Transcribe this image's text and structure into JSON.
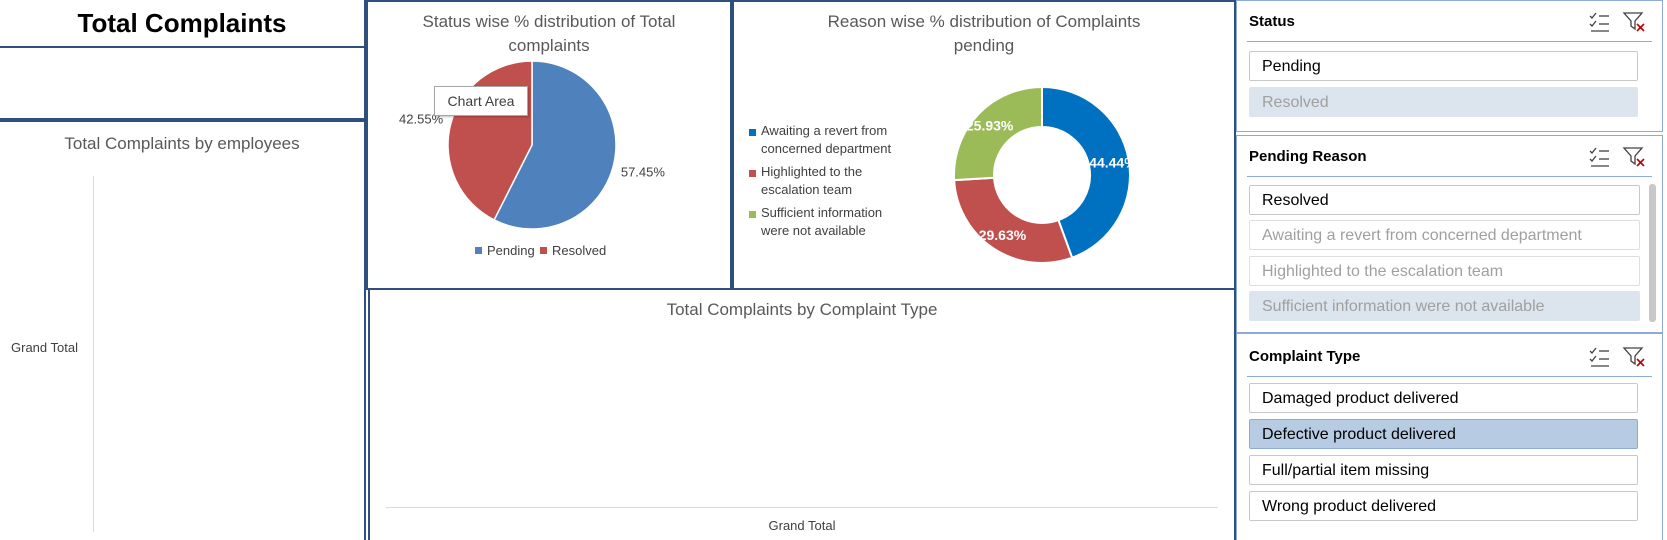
{
  "dashboard": {
    "title": "Total Complaints",
    "employees_chart": {
      "title": "Total Complaints by employees",
      "row_label": "Grand Total"
    },
    "type_chart": {
      "title": "Total Complaints by Complaint Type",
      "x_label": "Grand Total"
    },
    "tooltip": "Chart Area"
  },
  "chart_data": [
    {
      "type": "pie",
      "title": "Status wise % distribution of Total complaints",
      "title_lines": [
        "Status wise % distribution of Total",
        "complaints"
      ],
      "categories": [
        "Pending",
        "Resolved"
      ],
      "values": [
        57.45,
        42.55
      ],
      "labels": [
        "57.45%",
        "42.55%"
      ],
      "colors": [
        "#4f81bd",
        "#c0504d"
      ],
      "legend": "bottom"
    },
    {
      "type": "pie",
      "subtype": "donut",
      "title": "Reason wise % distribution of Complaints pending",
      "title_lines": [
        "Reason wise % distribution of Complaints",
        "pending"
      ],
      "categories": [
        "Awaiting a revert from concerned department",
        "Highlighted to the escalation team",
        "Sufficient information were not available"
      ],
      "legend_lines": [
        [
          "Awaiting a revert from",
          "concerned department"
        ],
        [
          "Highlighted to the",
          "escalation team"
        ],
        [
          "Sufficient information",
          "were not available"
        ]
      ],
      "values": [
        44.44,
        29.63,
        25.93
      ],
      "labels": [
        "44.44%",
        "29.63%",
        "25.93%"
      ],
      "colors": [
        "#0070c0",
        "#c0504d",
        "#9bbb59"
      ],
      "legend": "left"
    }
  ],
  "slicers": {
    "status": {
      "title": "Status",
      "items": [
        "Pending",
        "Resolved"
      ]
    },
    "pending_reason": {
      "title": "Pending Reason",
      "items": [
        "Resolved",
        "Awaiting a revert from concerned department",
        "Highlighted to the escalation team",
        "Sufficient information were not available"
      ]
    },
    "complaint_type": {
      "title": "Complaint Type",
      "items": [
        "Damaged product delivered",
        "Defective product delivered",
        "Full/partial item missing",
        "Wrong product delivered"
      ]
    }
  },
  "icons": {
    "multi_select": "multi-select-icon",
    "clear_filter": "clear-filter-icon"
  }
}
